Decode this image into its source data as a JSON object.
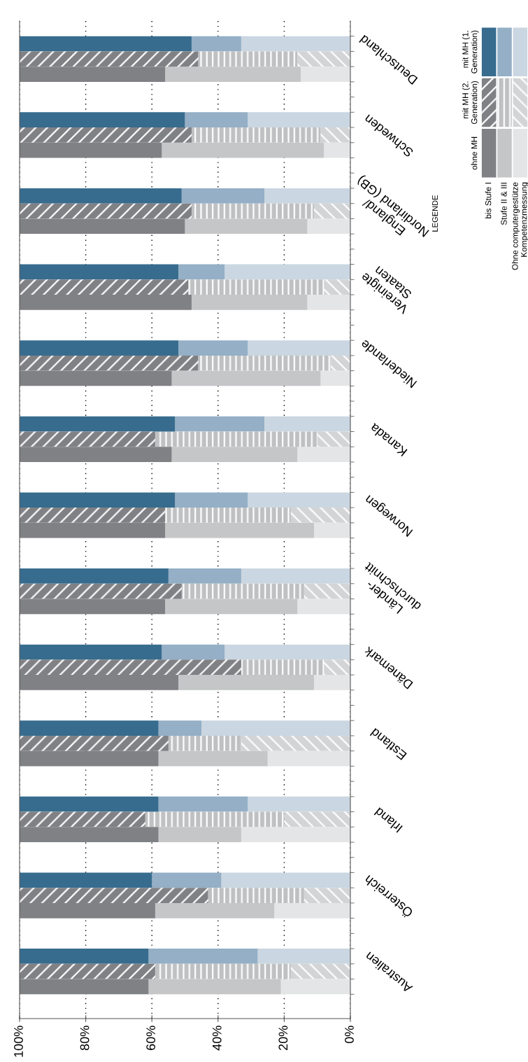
{
  "chart_data": {
    "type": "bar",
    "orientation": "horizontal",
    "stacked": true,
    "legend": "top right",
    "legend_title": "LEGENDE",
    "grid": "x",
    "categories": [
      null,
      "Deutschland",
      null,
      null,
      null,
      null,
      "Schweden",
      null,
      null,
      null,
      null,
      "England/\nNordirland (GB)",
      null,
      null,
      null,
      null,
      "Vereinigte\nStaaten",
      null,
      null,
      null,
      null,
      "Niederlande",
      null,
      null,
      null,
      null,
      "Kanada",
      null,
      null,
      null,
      null,
      "Norwegen",
      null,
      null,
      null,
      null,
      "Länder-\ndurchschnitt",
      null,
      null,
      null,
      null,
      "Dänemark",
      null,
      null,
      null,
      null,
      "Estland",
      null,
      null,
      null,
      null,
      "Irland",
      null,
      null,
      null,
      null,
      "Österreich",
      null,
      null,
      null,
      null,
      "Australien",
      null
    ],
    "xlim": [
      100,
      0
    ],
    "xticks": [
      {
        "value": 100,
        "label": "100%"
      },
      {
        "value": 80,
        "label": "80%"
      },
      {
        "value": 60,
        "label": "60%"
      },
      {
        "value": 40,
        "label": "40%"
      },
      {
        "value": 20,
        "label": "20%"
      },
      {
        "value": 0,
        "label": "0%"
      }
    ],
    "annotations": [
      "mit MH (1.\nGeneration)",
      "mit MH (2.\nGeneration)",
      "ohne MH"
    ],
    "series": [
      {
        "name": "Ohne computergestütze\nKompetenzmessung",
        "values": [
          33,
          16,
          15,
          null,
          null,
          31,
          9,
          8,
          null,
          null,
          26,
          11,
          13,
          null,
          null,
          38,
          8,
          13,
          null,
          null,
          31,
          6,
          9,
          null,
          null,
          26,
          10,
          16,
          null,
          null,
          31,
          18,
          11,
          null,
          null,
          33,
          14,
          16,
          null,
          null,
          38,
          8,
          11,
          null,
          null,
          45,
          33,
          25,
          null,
          null,
          31,
          20,
          33,
          null,
          null,
          39,
          14,
          23,
          null,
          null,
          28,
          18,
          21
        ],
        "colors": [
          "#cad6e1",
          "#d3d4d6",
          "#e4e5e6",
          null,
          null,
          "#cad6e1",
          "#d3d4d6",
          "#e4e5e6",
          null,
          null,
          "#cad6e1",
          "#d3d4d6",
          "#e4e5e6",
          null,
          null,
          "#cad6e1",
          "#d3d4d6",
          "#e4e5e6",
          null,
          null,
          "#cad6e1",
          "#d3d4d6",
          "#e4e5e6",
          null,
          null,
          "#cad6e1",
          "#d3d4d6",
          "#e4e5e6",
          null,
          null,
          "#cad6e1",
          "#d3d4d6",
          "#e4e5e6",
          null,
          null,
          "#cad6e1",
          "#d3d4d6",
          "#e4e5e6",
          null,
          null,
          "#cad6e1",
          "#d3d4d6",
          "#e4e5e6",
          null,
          null,
          "#cad6e1",
          "#d3d4d6",
          "#e4e5e6",
          null,
          null,
          "#cad6e1",
          "#d3d4d6",
          "#e4e5e6",
          null,
          null,
          "#cad6e1",
          "#d3d4d6",
          "#e4e5e6",
          null,
          null,
          "#cad6e1",
          "#d3d4d6",
          "#e4e5e6"
        ]
      },
      {
        "name": "Stufe II & III",
        "values": [
          15,
          30,
          41,
          null,
          null,
          19,
          39,
          49,
          null,
          null,
          25,
          37,
          37,
          null,
          null,
          14,
          41,
          35,
          null,
          null,
          21,
          40,
          45,
          null,
          null,
          27,
          49,
          38,
          null,
          null,
          22,
          38,
          45,
          null,
          null,
          22,
          37,
          40,
          null,
          null,
          19,
          25,
          41,
          null,
          null,
          13,
          22,
          33,
          null,
          null,
          27,
          42,
          25,
          null,
          null,
          21,
          29,
          36,
          null,
          null,
          33,
          41,
          40
        ],
        "colors": [
          "#94afc6",
          "#bfc0c2",
          "#c5c6c8",
          null,
          null,
          "#94afc6",
          "#bfc0c2",
          "#c5c6c8",
          null,
          null,
          "#94afc6",
          "#bfc0c2",
          "#c5c6c8",
          null,
          null,
          "#94afc6",
          "#bfc0c2",
          "#c5c6c8",
          null,
          null,
          "#94afc6",
          "#bfc0c2",
          "#c5c6c8",
          null,
          null,
          "#94afc6",
          "#bfc0c2",
          "#c5c6c8",
          null,
          null,
          "#94afc6",
          "#bfc0c2",
          "#c5c6c8",
          null,
          null,
          "#94afc6",
          "#bfc0c2",
          "#c5c6c8",
          null,
          null,
          "#94afc6",
          "#bfc0c2",
          "#c5c6c8",
          null,
          null,
          "#94afc6",
          "#bfc0c2",
          "#c5c6c8",
          null,
          null,
          "#94afc6",
          "#bfc0c2",
          "#c5c6c8",
          null,
          null,
          "#94afc6",
          "#bfc0c2",
          "#c5c6c8",
          null,
          null,
          "#94afc6",
          "#bfc0c2",
          "#c5c6c8"
        ]
      },
      {
        "name": "bis Stufe I",
        "values": [
          52,
          54,
          44,
          null,
          null,
          50,
          52,
          43,
          null,
          null,
          49,
          52,
          50,
          null,
          null,
          48,
          51,
          52,
          null,
          null,
          48,
          54,
          46,
          null,
          null,
          47,
          41,
          46,
          null,
          null,
          47,
          44,
          44,
          null,
          null,
          45,
          49,
          44,
          null,
          null,
          43,
          67,
          48,
          null,
          null,
          42,
          45,
          42,
          null,
          null,
          42,
          38,
          42,
          null,
          null,
          40,
          57,
          41,
          null,
          null,
          39,
          41,
          39
        ],
        "colors": [
          "#376c8e",
          "#808185",
          "#808185",
          null,
          null,
          "#376c8e",
          "#808185",
          "#808185",
          null,
          null,
          "#376c8e",
          "#808185",
          "#808185",
          null,
          null,
          "#376c8e",
          "#808185",
          "#808185",
          null,
          null,
          "#376c8e",
          "#808185",
          "#808185",
          null,
          null,
          "#376c8e",
          "#808185",
          "#808185",
          null,
          null,
          "#376c8e",
          "#808185",
          "#808185",
          null,
          null,
          "#376c8e",
          "#808185",
          "#808185",
          null,
          null,
          "#376c8e",
          "#808185",
          "#808185",
          null,
          null,
          "#376c8e",
          "#808185",
          "#808185",
          null,
          null,
          "#376c8e",
          "#808185",
          "#808185",
          null,
          null,
          "#376c8e",
          "#808185",
          "#808185",
          null,
          null,
          "#376c8e",
          "#808185",
          "#808185"
        ]
      }
    ]
  }
}
